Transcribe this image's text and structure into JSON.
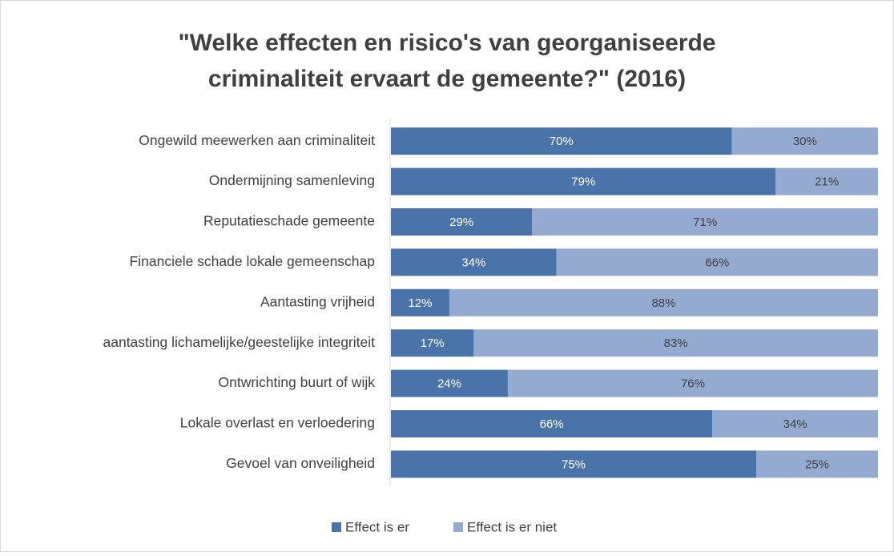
{
  "chart_data": {
    "type": "stacked-barh",
    "title": "\"Welke effecten en risico's van georganiseerde criminaliteit ervaart de gemeente?\" (2016)",
    "categories": [
      "Ongewild meewerken aan criminaliteit",
      "Ondermijning samenleving",
      "Reputatieschade gemeente",
      "Financiele schade lokale gemeenschap",
      "Aantasting vrijheid",
      "aantasting lichamelijke/geestelijke integriteit",
      "Ontwrichting buurt of wijk",
      "Lokale overlast en verloedering",
      "Gevoel van onveiligheid"
    ],
    "series": [
      {
        "name": "Effect is er",
        "color": "#4a74a9",
        "values": [
          70,
          79,
          29,
          34,
          12,
          17,
          24,
          66,
          75
        ],
        "value_labels": [
          "70%",
          "79%",
          "29%",
          "34%",
          "12%",
          "17%",
          "24%",
          "66%",
          "75%"
        ]
      },
      {
        "name": "Effect is er niet",
        "color": "#95aad0",
        "values": [
          30,
          21,
          71,
          66,
          88,
          83,
          76,
          34,
          25
        ],
        "value_labels": [
          "30%",
          "21%",
          "71%",
          "66%",
          "88%",
          "83%",
          "76%",
          "34%",
          "25%"
        ]
      }
    ],
    "xlim": [
      0,
      100
    ],
    "legend": "bottom"
  }
}
